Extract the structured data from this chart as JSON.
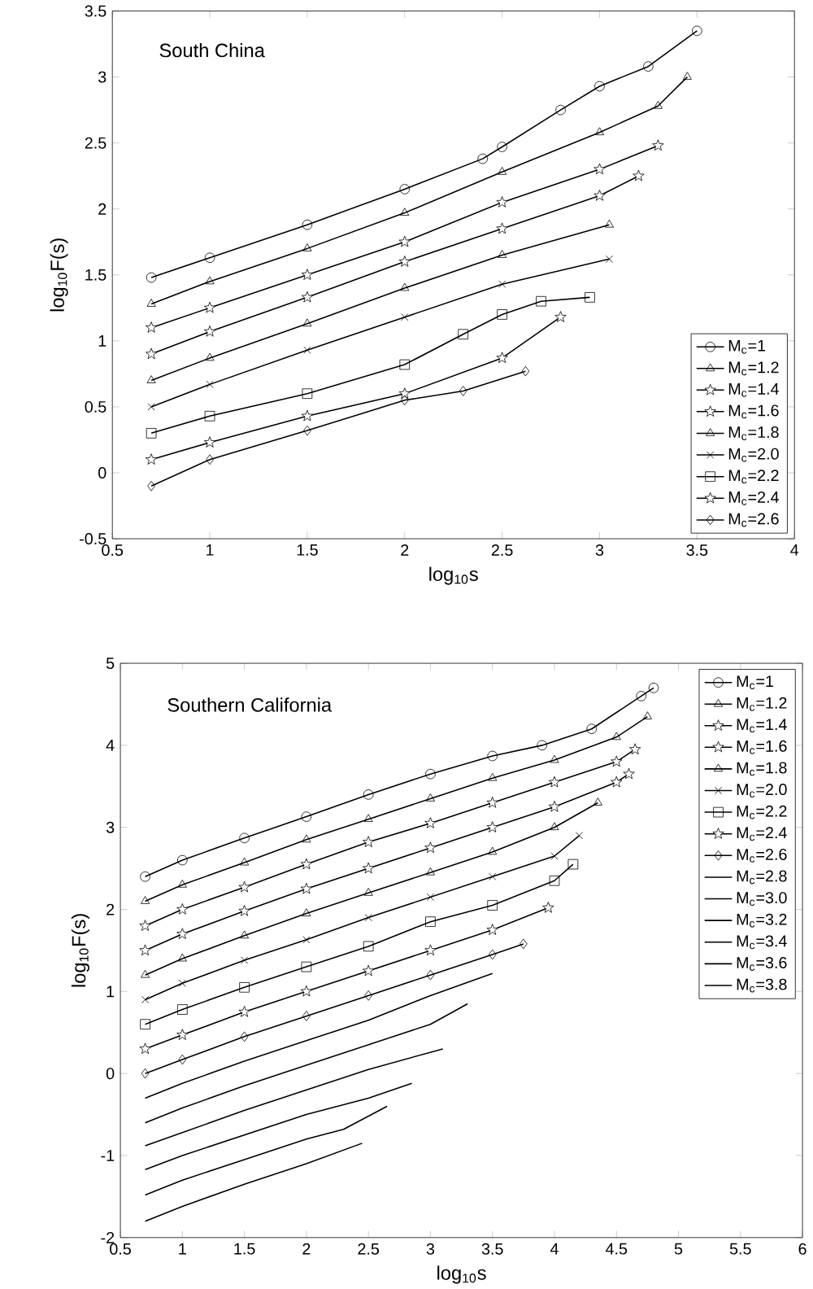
{
  "chart_data": [
    {
      "type": "line",
      "xlabel": "log$_{10}$s",
      "ylabel": "log$_{10}$F(s)",
      "annotations": [
        "South China"
      ],
      "xlim": [
        0.5,
        4
      ],
      "ylim": [
        -0.5,
        3.5
      ],
      "xticks": [
        0.5,
        1,
        1.5,
        2,
        2.5,
        3,
        3.5,
        4
      ],
      "yticks": [
        -0.5,
        0,
        0.5,
        1,
        1.5,
        2,
        2.5,
        3,
        3.5
      ],
      "legend": "bottom right",
      "grid": false,
      "series": [
        {
          "name": "M$_{c}$=1",
          "color": "#000000",
          "marker": "circle",
          "x": [
            0.7,
            1.0,
            1.5,
            2.0,
            2.4,
            2.5,
            2.8,
            3.0,
            3.25,
            3.5
          ],
          "values": [
            1.48,
            1.63,
            1.88,
            2.15,
            2.38,
            2.47,
            2.75,
            2.93,
            3.08,
            3.35
          ]
        },
        {
          "name": "M$_{c}$=1.2",
          "color": "#000000",
          "marker": "triangle",
          "x": [
            0.7,
            1.0,
            1.5,
            2.0,
            2.5,
            3.0,
            3.3,
            3.45
          ],
          "values": [
            1.28,
            1.45,
            1.7,
            1.97,
            2.28,
            2.58,
            2.78,
            3.0
          ]
        },
        {
          "name": "M$_{c}$=1.4",
          "color": "#000000",
          "marker": "star",
          "x": [
            0.7,
            1.0,
            1.5,
            2.0,
            2.5,
            3.0,
            3.3
          ],
          "values": [
            1.1,
            1.25,
            1.5,
            1.75,
            2.05,
            2.3,
            2.48
          ]
        },
        {
          "name": "M$_{c}$=1.6",
          "color": "#000000",
          "marker": "star",
          "x": [
            0.7,
            1.0,
            1.5,
            2.0,
            2.5,
            3.0,
            3.2
          ],
          "values": [
            0.9,
            1.07,
            1.33,
            1.6,
            1.85,
            2.1,
            2.25
          ]
        },
        {
          "name": "M$_{c}$=1.8",
          "color": "#000000",
          "marker": "triangle",
          "x": [
            0.7,
            1.0,
            1.5,
            2.0,
            2.5,
            3.05
          ],
          "values": [
            0.7,
            0.87,
            1.13,
            1.4,
            1.65,
            1.88
          ]
        },
        {
          "name": "M$_{c}$=2.0",
          "color": "#000000",
          "marker": "cross",
          "x": [
            0.7,
            1.0,
            1.5,
            2.0,
            2.5,
            3.05
          ],
          "values": [
            0.5,
            0.67,
            0.93,
            1.18,
            1.43,
            1.62
          ]
        },
        {
          "name": "M$_{c}$=2.2",
          "color": "#000000",
          "marker": "square",
          "x": [
            0.7,
            1.0,
            1.5,
            2.0,
            2.3,
            2.5,
            2.7,
            2.95
          ],
          "values": [
            0.3,
            0.43,
            0.6,
            0.82,
            1.05,
            1.2,
            1.3,
            1.33
          ]
        },
        {
          "name": "M$_{c}$=2.4",
          "color": "#000000",
          "marker": "star",
          "x": [
            0.7,
            1.0,
            1.5,
            2.0,
            2.5,
            2.8
          ],
          "values": [
            0.1,
            0.23,
            0.43,
            0.6,
            0.87,
            1.18
          ]
        },
        {
          "name": "M$_{c}$=2.6",
          "color": "#000000",
          "marker": "diamond",
          "x": [
            0.7,
            1.0,
            1.5,
            2.0,
            2.3,
            2.62
          ],
          "values": [
            -0.1,
            0.1,
            0.32,
            0.55,
            0.62,
            0.77
          ]
        }
      ]
    },
    {
      "type": "line",
      "xlabel": "log$_{10}$s",
      "ylabel": "log$_{10}$F(s)",
      "annotations": [
        "Southern California"
      ],
      "xlim": [
        0.5,
        6
      ],
      "ylim": [
        -2,
        5
      ],
      "xticks": [
        0.5,
        1,
        1.5,
        2,
        2.5,
        3,
        3.5,
        4,
        4.5,
        5,
        5.5,
        6
      ],
      "yticks": [
        -2,
        -1,
        0,
        1,
        2,
        3,
        4,
        5
      ],
      "legend": "top right",
      "grid": false,
      "series": [
        {
          "name": "M$_{c}$=1",
          "color": "#000000",
          "marker": "circle",
          "x": [
            0.7,
            1.0,
            1.5,
            2.0,
            2.5,
            3.0,
            3.5,
            3.9,
            4.3,
            4.7,
            4.8
          ],
          "values": [
            2.4,
            2.6,
            2.87,
            3.13,
            3.4,
            3.65,
            3.87,
            4.0,
            4.2,
            4.6,
            4.7
          ]
        },
        {
          "name": "M$_{c}$=1.2",
          "color": "#000000",
          "marker": "triangle",
          "x": [
            0.7,
            1.0,
            1.5,
            2.0,
            2.5,
            3.0,
            3.5,
            4.0,
            4.5,
            4.75
          ],
          "values": [
            2.1,
            2.3,
            2.57,
            2.85,
            3.1,
            3.35,
            3.6,
            3.82,
            4.1,
            4.35
          ]
        },
        {
          "name": "M$_{c}$=1.4",
          "color": "#000000",
          "marker": "star",
          "x": [
            0.7,
            1.0,
            1.5,
            2.0,
            2.5,
            3.0,
            3.5,
            4.0,
            4.5,
            4.65
          ],
          "values": [
            1.8,
            2.0,
            2.27,
            2.55,
            2.82,
            3.05,
            3.3,
            3.55,
            3.8,
            3.95
          ]
        },
        {
          "name": "M$_{c}$=1.6",
          "color": "#000000",
          "marker": "star",
          "x": [
            0.7,
            1.0,
            1.5,
            2.0,
            2.5,
            3.0,
            3.5,
            4.0,
            4.5,
            4.6
          ],
          "values": [
            1.5,
            1.7,
            1.98,
            2.25,
            2.5,
            2.75,
            3.0,
            3.25,
            3.55,
            3.65
          ]
        },
        {
          "name": "M$_{c}$=1.8",
          "color": "#000000",
          "marker": "triangle",
          "x": [
            0.7,
            1.0,
            1.5,
            2.0,
            2.5,
            3.0,
            3.5,
            4.0,
            4.35
          ],
          "values": [
            1.2,
            1.4,
            1.68,
            1.95,
            2.2,
            2.45,
            2.7,
            3.0,
            3.3
          ]
        },
        {
          "name": "M$_{c}$=2.0",
          "color": "#000000",
          "marker": "cross",
          "x": [
            0.7,
            1.0,
            1.5,
            2.0,
            2.5,
            3.0,
            3.5,
            4.0,
            4.2
          ],
          "values": [
            0.9,
            1.1,
            1.38,
            1.63,
            1.9,
            2.15,
            2.4,
            2.65,
            2.9
          ]
        },
        {
          "name": "M$_{c}$=2.2",
          "color": "#000000",
          "marker": "square",
          "x": [
            0.7,
            1.0,
            1.5,
            2.0,
            2.5,
            3.0,
            3.5,
            4.0,
            4.15
          ],
          "values": [
            0.6,
            0.78,
            1.05,
            1.3,
            1.55,
            1.85,
            2.05,
            2.35,
            2.55
          ]
        },
        {
          "name": "M$_{c}$=2.4",
          "color": "#000000",
          "marker": "star",
          "x": [
            0.7,
            1.0,
            1.5,
            2.0,
            2.5,
            3.0,
            3.5,
            3.95
          ],
          "values": [
            0.3,
            0.47,
            0.75,
            1.0,
            1.25,
            1.5,
            1.75,
            2.02
          ]
        },
        {
          "name": "M$_{c}$=2.6",
          "color": "#000000",
          "marker": "diamond",
          "x": [
            0.7,
            1.0,
            1.5,
            2.0,
            2.5,
            3.0,
            3.5,
            3.75
          ],
          "values": [
            0.0,
            0.17,
            0.45,
            0.7,
            0.95,
            1.2,
            1.45,
            1.58
          ]
        },
        {
          "name": "M$_{c}$=2.8",
          "color": "#000000",
          "marker": "none",
          "x": [
            0.7,
            1.0,
            1.5,
            2.0,
            2.5,
            3.0,
            3.5
          ],
          "values": [
            -0.3,
            -0.12,
            0.15,
            0.4,
            0.65,
            0.95,
            1.22
          ]
        },
        {
          "name": "M$_{c}$=3.0",
          "color": "#000000",
          "marker": "none",
          "x": [
            0.7,
            1.0,
            1.5,
            2.0,
            2.5,
            3.0,
            3.3
          ],
          "values": [
            -0.6,
            -0.42,
            -0.15,
            0.1,
            0.35,
            0.6,
            0.85
          ]
        },
        {
          "name": "M$_{c}$=3.2",
          "color": "#000000",
          "marker": "none",
          "x": [
            0.7,
            1.0,
            1.5,
            2.0,
            2.5,
            3.1
          ],
          "values": [
            -0.88,
            -0.72,
            -0.45,
            -0.2,
            0.05,
            0.3
          ]
        },
        {
          "name": "M$_{c}$=3.4",
          "color": "#000000",
          "marker": "none",
          "x": [
            0.7,
            1.0,
            1.5,
            2.0,
            2.5,
            2.85
          ],
          "values": [
            -1.17,
            -1.0,
            -0.75,
            -0.5,
            -0.3,
            -0.12
          ]
        },
        {
          "name": "M$_{c}$=3.6",
          "color": "#000000",
          "marker": "none",
          "x": [
            0.7,
            1.0,
            1.5,
            2.0,
            2.3,
            2.65
          ],
          "values": [
            -1.48,
            -1.3,
            -1.05,
            -0.8,
            -0.68,
            -0.4
          ]
        },
        {
          "name": "M$_{c}$=3.8",
          "color": "#000000",
          "marker": "none",
          "x": [
            0.7,
            1.0,
            1.5,
            2.0,
            2.45
          ],
          "values": [
            -1.8,
            -1.62,
            -1.35,
            -1.1,
            -0.85
          ]
        }
      ]
    }
  ]
}
